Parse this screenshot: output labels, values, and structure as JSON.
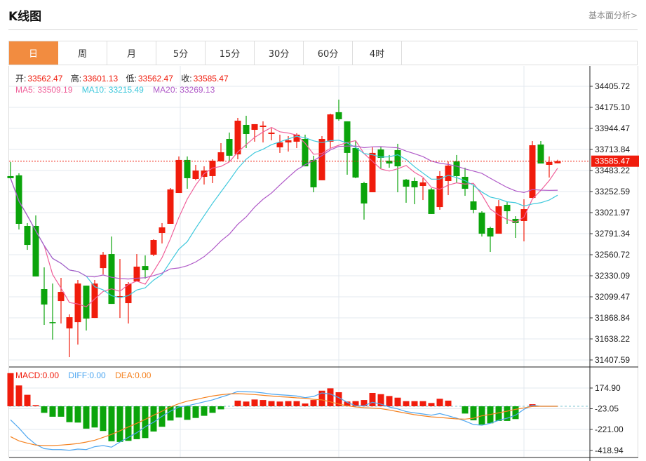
{
  "header": {
    "title": "K线图",
    "fundamental_link": "基本面分析>"
  },
  "tabs": [
    {
      "label": "日",
      "active": true
    },
    {
      "label": "周"
    },
    {
      "label": "月"
    },
    {
      "label": "5分"
    },
    {
      "label": "15分"
    },
    {
      "label": "30分"
    },
    {
      "label": "60分"
    },
    {
      "label": "4时"
    }
  ],
  "ohlc_legend": {
    "open_label": "开:",
    "open": "33562.47",
    "high_label": "高:",
    "high": "33601.13",
    "low_label": "低:",
    "low": "33562.47",
    "close_label": "收:",
    "close": "33585.47"
  },
  "ma_legend": {
    "ma5": "MA5: 33509.19",
    "ma10": "MA10: 33215.49",
    "ma20": "MA20: 33269.13"
  },
  "macd_legend": {
    "macd": "MACD:0.00",
    "diff": "DIFF:0.00",
    "dea": "DEA:0.00"
  },
  "colors": {
    "up": "#f01c0c",
    "down": "#0ba40b",
    "ma5": "#f0609a",
    "ma10": "#3ec8dc",
    "ma20": "#b05ac8",
    "diff": "#4da6f0",
    "dea": "#f58220",
    "accent": "#f28c40"
  },
  "chart_data": [
    {
      "type": "candlestick",
      "title": "K线图",
      "current_price": "33585.47",
      "ylim": [
        31407.59,
        34405.72
      ],
      "y_ticks": [
        "34405.72",
        "34175.10",
        "33944.47",
        "33713.84",
        "33483.22",
        "33252.59",
        "33021.97",
        "32791.34",
        "32560.72",
        "32330.09",
        "32099.47",
        "31868.84",
        "31638.22",
        "31407.59"
      ],
      "ma_periods": [
        5,
        10,
        20
      ],
      "candles": [
        [
          33422,
          33576,
          33391,
          33399
        ],
        [
          33430,
          33453,
          32837,
          32899
        ],
        [
          32876,
          32907,
          32614,
          32668
        ],
        [
          32876,
          32991,
          32322,
          32322
        ],
        [
          32184,
          32422,
          31792,
          32015
        ],
        [
          31822,
          32245,
          31630,
          31815
        ],
        [
          32053,
          32307,
          31807,
          32153
        ],
        [
          31753,
          31907,
          31438,
          31876
        ],
        [
          31822,
          32284,
          31576,
          32245
        ],
        [
          32222,
          32222,
          31730,
          31861
        ],
        [
          31868,
          32284,
          31868,
          32245
        ],
        [
          32414,
          32591,
          32345,
          32561
        ],
        [
          32568,
          32760,
          32022,
          32022
        ],
        [
          32099,
          32514,
          31868,
          32107
        ],
        [
          32030,
          32261,
          31807,
          32238
        ],
        [
          32268,
          32568,
          32268,
          32430
        ],
        [
          32437,
          32553,
          32299,
          32391
        ],
        [
          32561,
          32730,
          32545,
          32722
        ],
        [
          32799,
          32907,
          32684,
          32860
        ],
        [
          32899,
          33291,
          32899,
          33276
        ],
        [
          33237,
          33637,
          33237,
          33599
        ],
        [
          33599,
          33637,
          33283,
          33399
        ],
        [
          33391,
          33545,
          33376,
          33483
        ],
        [
          33414,
          33529,
          33330,
          33483
        ],
        [
          33422,
          33606,
          33345,
          33591
        ],
        [
          33583,
          33783,
          33583,
          33683
        ],
        [
          33829,
          33899,
          33591,
          33645
        ],
        [
          33660,
          34060,
          33606,
          34029
        ],
        [
          33983,
          34083,
          33729,
          33883
        ],
        [
          33929,
          33991,
          33799,
          33991
        ],
        [
          33960,
          34022,
          33791,
          33975
        ],
        [
          33883,
          33945,
          33814,
          33899
        ],
        [
          33737,
          33876,
          33676,
          33791
        ],
        [
          33791,
          33860,
          33691,
          33814
        ],
        [
          33799,
          33891,
          33729,
          33876
        ],
        [
          33829,
          33876,
          33529,
          33529
        ],
        [
          33599,
          33645,
          33245,
          33299
        ],
        [
          33376,
          33860,
          33376,
          33829
        ],
        [
          33799,
          34106,
          33729,
          34098
        ],
        [
          34122,
          34260,
          34029,
          34045
        ],
        [
          34022,
          34022,
          33437,
          33676
        ],
        [
          33729,
          33806,
          33399,
          33406
        ],
        [
          33345,
          33360,
          32945,
          33122
        ],
        [
          33245,
          33737,
          33245,
          33676
        ],
        [
          33714,
          33745,
          33506,
          33622
        ],
        [
          33591,
          33653,
          33514,
          33560
        ],
        [
          33706,
          33776,
          33245,
          33529
        ],
        [
          33383,
          33391,
          33130,
          33306
        ],
        [
          33368,
          33406,
          33114,
          33299
        ],
        [
          33314,
          33399,
          33160,
          33353
        ],
        [
          33276,
          33291,
          33007,
          33007
        ],
        [
          33083,
          33476,
          33053,
          33422
        ],
        [
          33368,
          33583,
          33214,
          33537
        ],
        [
          33583,
          33653,
          33345,
          33422
        ],
        [
          33414,
          33514,
          33206,
          33283
        ],
        [
          33145,
          33330,
          33014,
          33053
        ],
        [
          33022,
          33037,
          32760,
          32791
        ],
        [
          32853,
          32868,
          32591,
          32760
        ],
        [
          32791,
          33160,
          32791,
          33091
        ],
        [
          33107,
          33137,
          32899,
          33037
        ],
        [
          32953,
          32983,
          32745,
          32907
        ],
        [
          32930,
          33168,
          32707,
          33060
        ],
        [
          33183,
          33806,
          33183,
          33760
        ],
        [
          33768,
          33806,
          33560,
          33560
        ],
        [
          33545,
          33637,
          33406,
          33576
        ],
        [
          33562.47,
          33601.13,
          33562.47,
          33585.47
        ]
      ],
      "candle_fields": [
        "open",
        "high",
        "low",
        "close"
      ]
    },
    {
      "type": "bar+line",
      "title": "MACD",
      "y_ticks": [
        "174.90",
        "-23.05",
        "-221.00",
        "-418.94"
      ],
      "macd": [
        323,
        203,
        112,
        11,
        -64,
        -102,
        -102,
        -155,
        -159,
        -218,
        -207,
        -241,
        -341,
        -348,
        -337,
        -321,
        -310,
        -246,
        -200,
        -139,
        -109,
        -132,
        -114,
        -93,
        -64,
        -30,
        0,
        55,
        46,
        66,
        61,
        50,
        46,
        50,
        50,
        27,
        61,
        152,
        175,
        137,
        46,
        50,
        61,
        130,
        118,
        100,
        84,
        50,
        50,
        50,
        32,
        73,
        55,
        0,
        -71,
        -137,
        -178,
        -166,
        -143,
        -143,
        -125,
        0,
        20,
        0,
        0,
        0
      ],
      "diff": [
        -132,
        -212,
        -303,
        -372,
        -413,
        -422,
        -422,
        -429,
        -417,
        -422,
        -394,
        -383,
        -399,
        -349,
        -303,
        -258,
        -201,
        -155,
        -98,
        -48,
        -7,
        5,
        23,
        43,
        62,
        89,
        114,
        144,
        141,
        139,
        130,
        119,
        112,
        107,
        100,
        84,
        96,
        130,
        119,
        84,
        39,
        5,
        5,
        39,
        21,
        -7,
        -25,
        -52,
        -64,
        -75,
        -87,
        -71,
        -93,
        -116,
        -144,
        -178,
        -185,
        -166,
        -137,
        -116,
        -87,
        -30,
        11,
        0,
        0,
        0
      ],
      "dea": [
        -296,
        -337,
        -360,
        -378,
        -383,
        -383,
        -378,
        -372,
        -363,
        -349,
        -331,
        -303,
        -274,
        -239,
        -201,
        -166,
        -128,
        -87,
        -48,
        -7,
        25,
        50,
        66,
        84,
        100,
        112,
        121,
        123,
        119,
        114,
        107,
        100,
        93,
        89,
        82,
        78,
        68,
        62,
        43,
        21,
        5,
        -7,
        -14,
        -18,
        -23,
        -36,
        -52,
        -68,
        -82,
        -93,
        -103,
        -109,
        -116,
        -123,
        -125,
        -116,
        -93,
        -80,
        -64,
        -48,
        -30,
        -16,
        -2,
        0,
        0,
        0
      ]
    }
  ]
}
